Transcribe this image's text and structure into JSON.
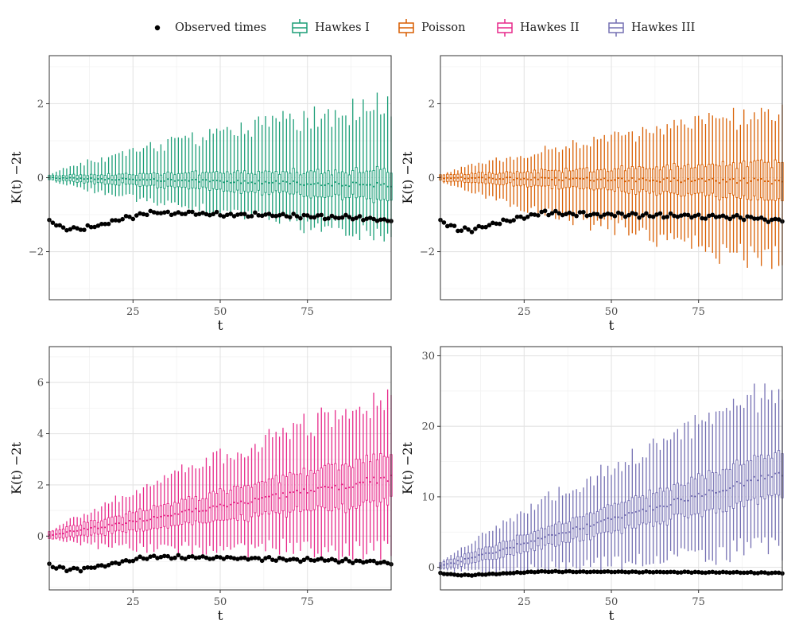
{
  "legend": {
    "items": [
      {
        "label": "Observed times",
        "kind": "point",
        "color": "#000000"
      },
      {
        "label": "Hawkes I",
        "kind": "box",
        "color": "#1b9e77"
      },
      {
        "label": "Poisson",
        "kind": "box",
        "color": "#d95f02"
      },
      {
        "label": "Hawkes II",
        "kind": "box",
        "color": "#e7298a"
      },
      {
        "label": "Hawkes III",
        "kind": "box",
        "color": "#7570b3"
      }
    ]
  },
  "chart_data": [
    {
      "type": "boxplot",
      "series_name": "Hawkes I",
      "color": "#1b9e77",
      "xlabel": "t",
      "ylabel": "K(t) −2t",
      "xlim": [
        1,
        99
      ],
      "ylim": [
        -3.3,
        3.3
      ],
      "x_ticks": [
        25,
        50,
        75
      ],
      "y_ticks": [
        -2,
        0,
        2
      ],
      "box_trend": {
        "median_end": -0.2,
        "q_spread_end": 0.4,
        "whisker_up_end": 2.0,
        "whisker_low_end": -1.6
      },
      "observed": {
        "start": -1.15,
        "min": -1.4,
        "mid": -0.95,
        "end": -1.15
      }
    },
    {
      "type": "boxplot",
      "series_name": "Poisson",
      "color": "#d95f02",
      "xlabel": "t",
      "ylabel": "K(t) −2t",
      "xlim": [
        1,
        99
      ],
      "ylim": [
        -3.3,
        3.3
      ],
      "x_ticks": [
        25,
        50,
        75
      ],
      "y_ticks": [
        -2,
        0,
        2
      ],
      "box_trend": {
        "median_end": -0.1,
        "q_spread_end": 0.5,
        "whisker_up_end": 1.8,
        "whisker_low_end": -2.3
      },
      "observed": {
        "start": -1.15,
        "min": -1.4,
        "mid": -0.95,
        "end": -1.15
      }
    },
    {
      "type": "boxplot",
      "series_name": "Hawkes II",
      "color": "#e7298a",
      "xlabel": "t",
      "ylabel": "K(t) −2t",
      "xlim": [
        1,
        99
      ],
      "ylim": [
        -2.1,
        7.4
      ],
      "x_ticks": [
        25,
        50,
        75
      ],
      "y_ticks": [
        0,
        2,
        4,
        6
      ],
      "box_trend": {
        "median_end": 2.3,
        "q_spread_end": 0.95,
        "whisker_up_end": 5.5,
        "whisker_low_end": -0.6
      },
      "observed": {
        "start": -1.1,
        "min": -1.3,
        "mid": -0.8,
        "end": -1.05
      }
    },
    {
      "type": "boxplot",
      "series_name": "Hawkes III",
      "color": "#7570b3",
      "xlabel": "t",
      "ylabel": "K(t) −2t",
      "xlim": [
        1,
        99
      ],
      "ylim": [
        -3.2,
        31.3
      ],
      "x_ticks": [
        25,
        50,
        75
      ],
      "y_ticks": [
        0,
        10,
        20,
        30
      ],
      "box_trend": {
        "median_end": 13.5,
        "q_spread_end": 3.2,
        "whisker_up_end": 26.0,
        "whisker_low_end": 3.0
      },
      "observed": {
        "start": -0.8,
        "min": -1.1,
        "mid": -0.6,
        "end": -0.8
      }
    }
  ]
}
